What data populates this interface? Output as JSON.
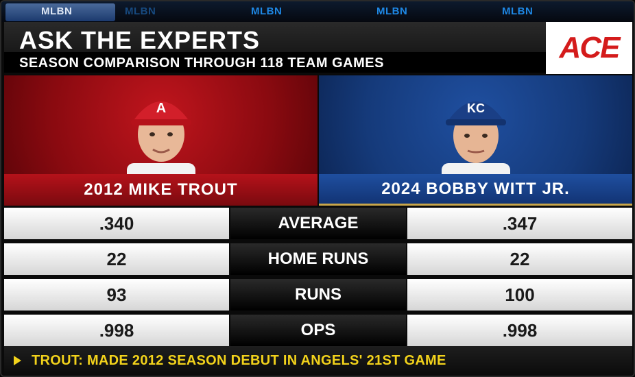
{
  "ticker": {
    "items": [
      "MLBN",
      "MLBN",
      "MLBN",
      "MLBN",
      "MLBN"
    ]
  },
  "header": {
    "title": "ASK THE EXPERTS",
    "subtitle": "SEASON COMPARISON THROUGH 118 TEAM GAMES"
  },
  "sponsor": {
    "logo_text": "ACE"
  },
  "players": [
    {
      "name": "2012 MIKE TROUT",
      "cap_color": "#d21f2a",
      "cap_logo": "A"
    },
    {
      "name": "2024 BOBBY WITT JR.",
      "cap_color": "#1f4fa0",
      "cap_logo": "KC"
    }
  ],
  "stats": [
    {
      "label": "AVERAGE",
      "left": ".340",
      "right": ".347"
    },
    {
      "label": "HOME RUNS",
      "left": "22",
      "right": "22"
    },
    {
      "label": "RUNS",
      "left": "93",
      "right": "100"
    },
    {
      "label": "OPS",
      "left": ".998",
      "right": ".998"
    }
  ],
  "footer": {
    "text": "TROUT: MADE 2012 SEASON DEBUT IN ANGELS' 21ST GAME"
  },
  "colors": {
    "angels_red": "#b5121a",
    "royals_blue": "#1f4fa0",
    "footer_yellow": "#f2d21b",
    "ace_red": "#d41b1b"
  }
}
